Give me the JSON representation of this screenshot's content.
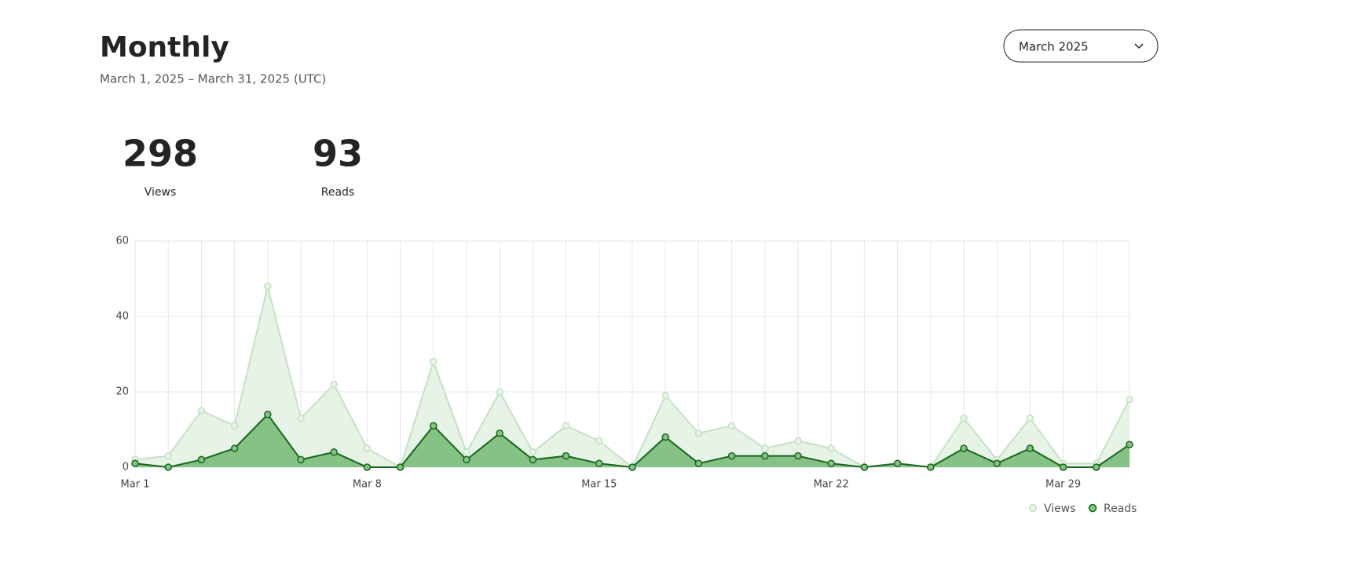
{
  "header": {
    "title": "Monthly",
    "subtitle": "March 1, 2025 – March 31, 2025 (UTC)",
    "dropdown": "March 2025"
  },
  "stats": [
    {
      "value": 298,
      "label": "Views"
    },
    {
      "value": 93,
      "label": "Reads"
    }
  ],
  "chart_data": {
    "type": "area",
    "categories": [
      "Mar 1",
      null,
      null,
      null,
      null,
      null,
      null,
      "Mar 8",
      null,
      null,
      null,
      null,
      null,
      null,
      "Mar 15",
      null,
      null,
      null,
      null,
      null,
      null,
      "Mar 22",
      null,
      null,
      null,
      null,
      null,
      null,
      "Mar 29",
      null,
      null
    ],
    "series": [
      {
        "name": "Views",
        "color": "#c4e2c4",
        "fill": "#e7f3e7",
        "values": [
          2,
          3,
          15,
          11,
          48,
          13,
          22,
          5,
          0,
          28,
          4,
          20,
          4,
          11,
          7,
          0,
          19,
          9,
          11,
          5,
          7,
          5,
          0,
          1,
          0,
          13,
          2,
          13,
          1,
          1,
          18
        ]
      },
      {
        "name": "Reads",
        "color": "#16661c",
        "fill": "#86c286",
        "values": [
          1,
          0,
          2,
          5,
          14,
          2,
          4,
          0,
          0,
          11,
          2,
          9,
          2,
          3,
          1,
          0,
          8,
          1,
          3,
          3,
          3,
          1,
          0,
          1,
          0,
          5,
          1,
          5,
          0,
          0,
          6
        ]
      }
    ],
    "ylim": [
      0,
      60
    ],
    "yticks": [
      0,
      20,
      40,
      60
    ],
    "grid": true,
    "legend": "bottom-right"
  }
}
